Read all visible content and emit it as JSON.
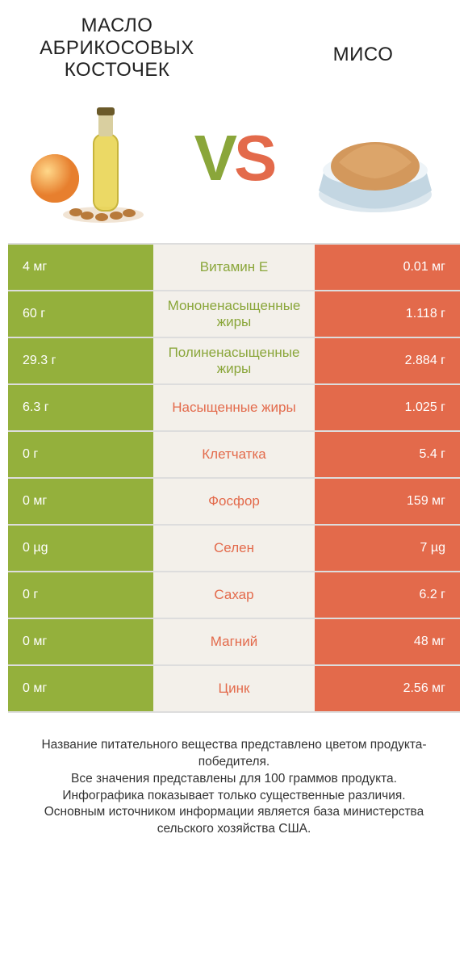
{
  "colors": {
    "green": "#94b03c",
    "green_text": "#8aa63a",
    "orange": "#e36a4b",
    "mid_bg": "#f3f0ea",
    "border": "#ddd"
  },
  "header": {
    "left_title": "МАСЛО АБРИКОСОВЫХ КОСТОЧЕК",
    "right_title": "МИСО",
    "vs_v": "V",
    "vs_s": "S"
  },
  "table": {
    "type": "comparison-table",
    "rows": [
      {
        "nutrient": "Витамин Е",
        "left": "4 мг",
        "right": "0.01 мг",
        "winner": "left"
      },
      {
        "nutrient": "Мононенасыщенные жиры",
        "left": "60 г",
        "right": "1.118 г",
        "winner": "left"
      },
      {
        "nutrient": "Полиненасыщенные жиры",
        "left": "29.3 г",
        "right": "2.884 г",
        "winner": "left"
      },
      {
        "nutrient": "Насыщенные жиры",
        "left": "6.3 г",
        "right": "1.025 г",
        "winner": "right"
      },
      {
        "nutrient": "Клетчатка",
        "left": "0 г",
        "right": "5.4 г",
        "winner": "right"
      },
      {
        "nutrient": "Фосфор",
        "left": "0 мг",
        "right": "159 мг",
        "winner": "right"
      },
      {
        "nutrient": "Селен",
        "left": "0 µg",
        "right": "7 µg",
        "winner": "right"
      },
      {
        "nutrient": "Сахар",
        "left": "0 г",
        "right": "6.2 г",
        "winner": "right"
      },
      {
        "nutrient": "Магний",
        "left": "0 мг",
        "right": "48 мг",
        "winner": "right"
      },
      {
        "nutrient": "Цинк",
        "left": "0 мг",
        "right": "2.56 мг",
        "winner": "right"
      }
    ]
  },
  "footer": {
    "line1": "Название питательного вещества представлено цветом продукта-победителя.",
    "line2": "Все значения представлены для 100 граммов продукта.",
    "line3": "Инфографика показывает только существенные различия.",
    "line4": "Основным источником информации является база министерства сельского хозяйства США."
  }
}
